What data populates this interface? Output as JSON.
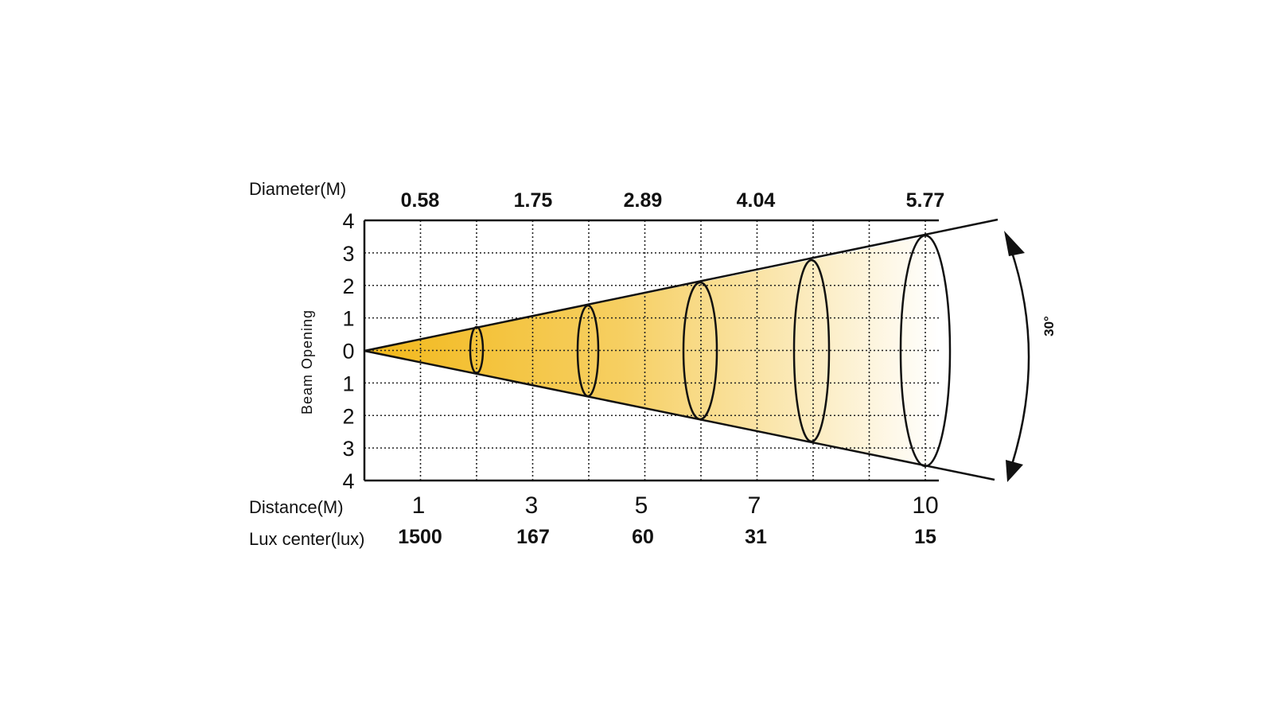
{
  "diagram": {
    "diameter_label": "Diameter(M)",
    "distance_label": "Distance(M)",
    "lux_label": "Lux center(lux)",
    "beam_opening_label": "Beam Opening",
    "beam_angle_label": "30°",
    "y_ticks": [
      "4",
      "3",
      "2",
      "1",
      "0",
      "1",
      "2",
      "3",
      "4"
    ],
    "measurements": [
      {
        "diameter": "0.58",
        "distance": "1",
        "lux": "1500"
      },
      {
        "diameter": "1.75",
        "distance": "3",
        "lux": "167"
      },
      {
        "diameter": "2.89",
        "distance": "5",
        "lux": "60"
      },
      {
        "diameter": "4.04",
        "distance": "7",
        "lux": "31"
      },
      {
        "diameter": "5.77",
        "distance": "10",
        "lux": "15"
      }
    ],
    "colors": {
      "beam_start": "#f2b81a",
      "beam_end": "#ffffff",
      "line": "#111111",
      "grid": "#222222"
    }
  }
}
